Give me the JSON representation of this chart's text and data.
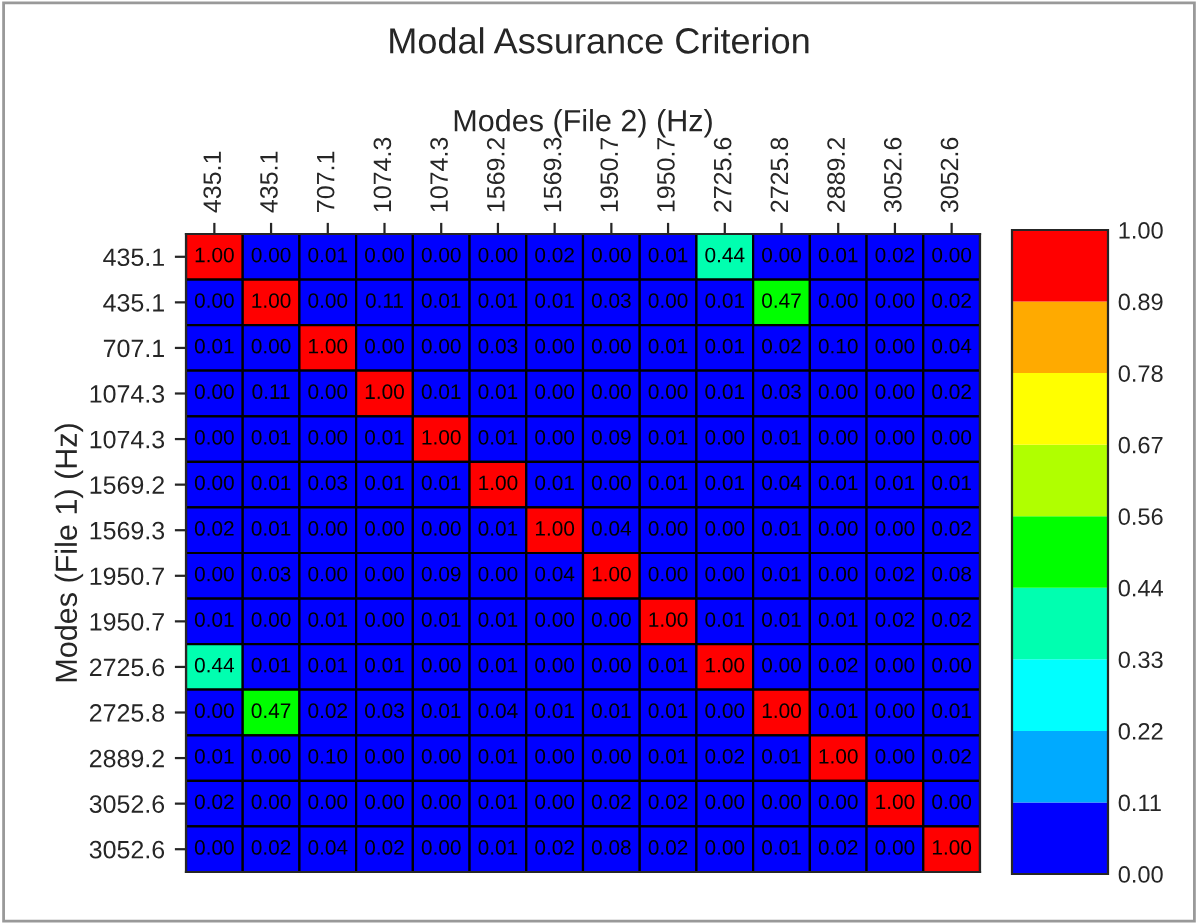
{
  "chart_data": {
    "type": "heatmap",
    "title": "Modal Assurance Criterion",
    "xlabel": "Modes (File 2) (Hz)",
    "ylabel": "Modes (File 1) (Hz)",
    "categories": [
      "435.1",
      "435.1",
      "707.1",
      "1074.3",
      "1074.3",
      "1569.2",
      "1569.3",
      "1950.7",
      "1950.7",
      "2725.6",
      "2725.8",
      "2889.2",
      "3052.6",
      "3052.6"
    ],
    "y_categories": [
      "435.1",
      "435.1",
      "707.1",
      "1074.3",
      "1074.3",
      "1569.2",
      "1569.3",
      "1950.7",
      "1950.7",
      "2725.6",
      "2725.8",
      "2889.2",
      "3052.6",
      "3052.6"
    ],
    "cells": [
      [
        1.0,
        0.0,
        0.01,
        0.0,
        0.0,
        0.0,
        0.02,
        0.0,
        0.01,
        0.44,
        0.0,
        0.01,
        0.02,
        0.0
      ],
      [
        0.0,
        1.0,
        0.0,
        0.11,
        0.01,
        0.01,
        0.01,
        0.03,
        0.0,
        0.01,
        0.47,
        0.0,
        0.0,
        0.02
      ],
      [
        0.01,
        0.0,
        1.0,
        0.0,
        0.0,
        0.03,
        0.0,
        0.0,
        0.01,
        0.01,
        0.02,
        0.1,
        0.0,
        0.04
      ],
      [
        0.0,
        0.11,
        0.0,
        1.0,
        0.01,
        0.01,
        0.0,
        0.0,
        0.0,
        0.01,
        0.03,
        0.0,
        0.0,
        0.02
      ],
      [
        0.0,
        0.01,
        0.0,
        0.01,
        1.0,
        0.01,
        0.0,
        0.09,
        0.01,
        0.0,
        0.01,
        0.0,
        0.0,
        0.0
      ],
      [
        0.0,
        0.01,
        0.03,
        0.01,
        0.01,
        1.0,
        0.01,
        0.0,
        0.01,
        0.01,
        0.04,
        0.01,
        0.01,
        0.01
      ],
      [
        0.02,
        0.01,
        0.0,
        0.0,
        0.0,
        0.01,
        1.0,
        0.04,
        0.0,
        0.0,
        0.01,
        0.0,
        0.0,
        0.02
      ],
      [
        0.0,
        0.03,
        0.0,
        0.0,
        0.09,
        0.0,
        0.04,
        1.0,
        0.0,
        0.0,
        0.01,
        0.0,
        0.02,
        0.08
      ],
      [
        0.01,
        0.0,
        0.01,
        0.0,
        0.01,
        0.01,
        0.0,
        0.0,
        1.0,
        0.01,
        0.01,
        0.01,
        0.02,
        0.02
      ],
      [
        0.44,
        0.01,
        0.01,
        0.01,
        0.0,
        0.01,
        0.0,
        0.0,
        0.01,
        1.0,
        0.0,
        0.02,
        0.0,
        0.0
      ],
      [
        0.0,
        0.47,
        0.02,
        0.03,
        0.01,
        0.04,
        0.01,
        0.01,
        0.01,
        0.0,
        1.0,
        0.01,
        0.0,
        0.01
      ],
      [
        0.01,
        0.0,
        0.1,
        0.0,
        0.0,
        0.01,
        0.0,
        0.0,
        0.01,
        0.02,
        0.01,
        1.0,
        0.0,
        0.02
      ],
      [
        0.02,
        0.0,
        0.0,
        0.0,
        0.0,
        0.01,
        0.0,
        0.02,
        0.02,
        0.0,
        0.0,
        0.0,
        1.0,
        0.0
      ],
      [
        0.0,
        0.02,
        0.04,
        0.02,
        0.0,
        0.01,
        0.02,
        0.08,
        0.02,
        0.0,
        0.01,
        0.02,
        0.0,
        1.0
      ]
    ],
    "cell_labels": [
      [
        "1.00",
        "0.00",
        "0.01",
        "0.00",
        "0.00",
        "0.00",
        "0.02",
        "0.00",
        "0.01",
        "0.44",
        "0.00",
        "0.01",
        "0.02",
        "0.00"
      ],
      [
        "0.00",
        "1.00",
        "0.00",
        "0.11",
        "0.01",
        "0.01",
        "0.01",
        "0.03",
        "0.00",
        "0.01",
        "0.47",
        "0.00",
        "0.00",
        "0.02"
      ],
      [
        "0.01",
        "0.00",
        "1.00",
        "0.00",
        "0.00",
        "0.03",
        "0.00",
        "0.00",
        "0.01",
        "0.01",
        "0.02",
        "0.10",
        "0.00",
        "0.04"
      ],
      [
        "0.00",
        "0.11",
        "0.00",
        "1.00",
        "0.01",
        "0.01",
        "0.00",
        "0.00",
        "0.00",
        "0.01",
        "0.03",
        "0.00",
        "0.00",
        "0.02"
      ],
      [
        "0.00",
        "0.01",
        "0.00",
        "0.01",
        "1.00",
        "0.01",
        "0.00",
        "0.09",
        "0.01",
        "0.00",
        "0.01",
        "0.00",
        "0.00",
        "0.00"
      ],
      [
        "0.00",
        "0.01",
        "0.03",
        "0.01",
        "0.01",
        "1.00",
        "0.01",
        "0.00",
        "0.01",
        "0.01",
        "0.04",
        "0.01",
        "0.01",
        "0.01"
      ],
      [
        "0.02",
        "0.01",
        "0.00",
        "0.00",
        "0.00",
        "0.01",
        "1.00",
        "0.04",
        "0.00",
        "0.00",
        "0.01",
        "0.00",
        "0.00",
        "0.02"
      ],
      [
        "0.00",
        "0.03",
        "0.00",
        "0.00",
        "0.09",
        "0.00",
        "0.04",
        "1.00",
        "0.00",
        "0.00",
        "0.01",
        "0.00",
        "0.02",
        "0.08"
      ],
      [
        "0.01",
        "0.00",
        "0.01",
        "0.00",
        "0.01",
        "0.01",
        "0.00",
        "0.00",
        "1.00",
        "0.01",
        "0.01",
        "0.01",
        "0.02",
        "0.02"
      ],
      [
        "0.44",
        "0.01",
        "0.01",
        "0.01",
        "0.00",
        "0.01",
        "0.00",
        "0.00",
        "0.01",
        "1.00",
        "0.00",
        "0.02",
        "0.00",
        "0.00"
      ],
      [
        "0.00",
        "0.47",
        "0.02",
        "0.03",
        "0.01",
        "0.04",
        "0.01",
        "0.01",
        "0.01",
        "0.00",
        "1.00",
        "0.01",
        "0.00",
        "0.01"
      ],
      [
        "0.01",
        "0.00",
        "0.10",
        "0.00",
        "0.00",
        "0.01",
        "0.00",
        "0.00",
        "0.01",
        "0.02",
        "0.01",
        "1.00",
        "0.00",
        "0.02"
      ],
      [
        "0.02",
        "0.00",
        "0.00",
        "0.00",
        "0.00",
        "0.01",
        "0.00",
        "0.02",
        "0.02",
        "0.00",
        "0.00",
        "0.00",
        "1.00",
        "0.00"
      ],
      [
        "0.00",
        "0.02",
        "0.04",
        "0.02",
        "0.00",
        "0.01",
        "0.02",
        "0.08",
        "0.02",
        "0.00",
        "0.01",
        "0.02",
        "0.00",
        "1.00"
      ]
    ],
    "clim": [
      0,
      1
    ],
    "cticks": [
      {
        "value": 0,
        "label": "0.00"
      },
      0.11,
      0.22,
      0.33,
      0.44,
      0.56,
      0.67,
      0.78,
      0.89,
      {
        "value": 1,
        "label": "1.00"
      }
    ],
    "colors": [
      "#0000ff",
      "#00aaff",
      "#00ffff",
      "#00ffb0",
      "#00ff00",
      "#b0ff00",
      "#ffff00",
      "#ffaa00",
      "#ff0000"
    ]
  }
}
